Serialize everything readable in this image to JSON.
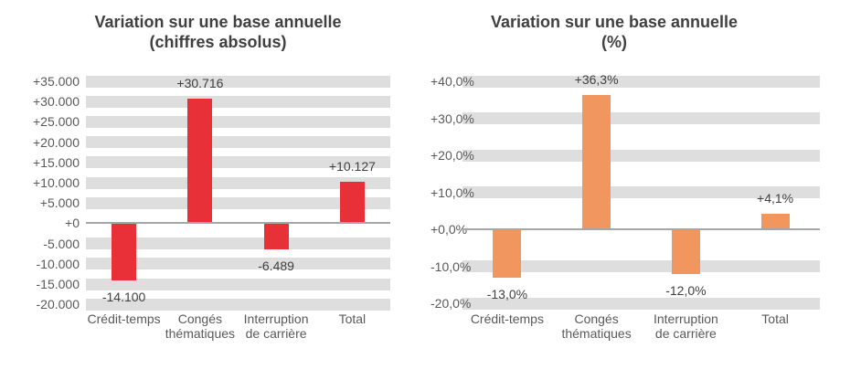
{
  "chart_data": [
    {
      "type": "bar",
      "title": "Variation sur une base annuelle (chiffres absolus)",
      "title_lines": [
        "Variation sur une base annuelle",
        "(chiffres absolus)"
      ],
      "categories": [
        "Crédit-temps",
        "Congés thématiques",
        "Interruption de carrière",
        "Total"
      ],
      "category_lines": [
        [
          "Crédit-temps"
        ],
        [
          "Congés",
          "thématiques"
        ],
        [
          "Interruption",
          "de carrière"
        ],
        [
          "Total"
        ]
      ],
      "values": [
        -14100,
        30716,
        -6489,
        10127
      ],
      "data_labels": [
        "-14.100",
        "+30.716",
        "-6.489",
        "+10.127"
      ],
      "y_ticks": [
        35000,
        30000,
        25000,
        20000,
        15000,
        10000,
        5000,
        0,
        -5000,
        -10000,
        -15000,
        -20000
      ],
      "y_tick_labels": [
        "+35.000",
        "+30.000",
        "+25.000",
        "+20.000",
        "+15.000",
        "+10.000",
        "+5.000",
        "+0",
        "-5.000",
        "-10.000",
        "-15.000",
        "-20.000"
      ],
      "ylim": [
        -20000,
        35000
      ],
      "xlabel": "",
      "ylabel": "",
      "legend": "none",
      "grid_style": "thick-gray-horizontal-bands",
      "bar_color": "#e73037",
      "stripe_color": "#dedede",
      "axis_line_color": "#a6a6a6"
    },
    {
      "type": "bar",
      "title": "Variation sur une base annuelle (%)",
      "title_lines": [
        "Variation sur une base annuelle",
        "(%)"
      ],
      "categories": [
        "Crédit-temps",
        "Congés thématiques",
        "Interruption de carrière",
        "Total"
      ],
      "category_lines": [
        [
          "Crédit-temps"
        ],
        [
          "Congés",
          "thématiques"
        ],
        [
          "Interruption",
          "de carrière"
        ],
        [
          "Total"
        ]
      ],
      "values": [
        -13.0,
        36.3,
        -12.0,
        4.1
      ],
      "data_labels": [
        "-13,0%",
        "+36,3%",
        "-12,0%",
        "+4,1%"
      ],
      "y_ticks": [
        40,
        30,
        20,
        10,
        0,
        -10,
        -20
      ],
      "y_tick_labels": [
        "+40,0%",
        "+30,0%",
        "+20,0%",
        "+10,0%",
        "+0,0%",
        "-10,0%",
        "-20,0%"
      ],
      "ylim": [
        -20,
        40
      ],
      "xlabel": "",
      "ylabel": "",
      "legend": "none",
      "grid_style": "thick-gray-horizontal-bands",
      "bar_color": "#f0965e",
      "stripe_color": "#dedede",
      "axis_line_color": "#a6a6a6"
    }
  ]
}
